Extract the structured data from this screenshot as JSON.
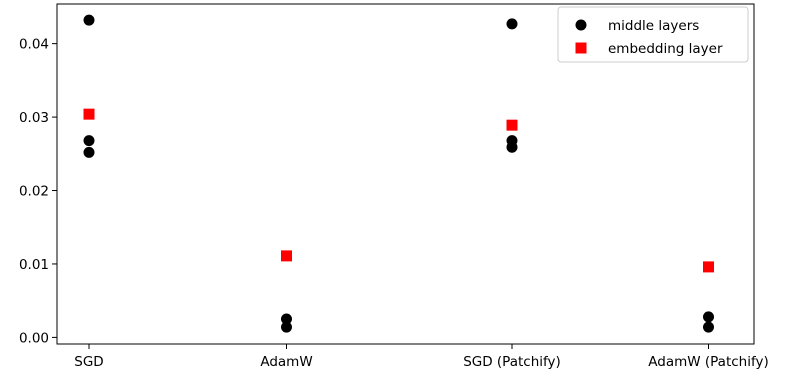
{
  "chart_data": {
    "type": "scatter",
    "categories": [
      "SGD",
      "AdamW",
      "SGD (Patchify)",
      "AdamW (Patchify)"
    ],
    "ylim": [
      -0.0009,
      0.0454
    ],
    "yticks": [
      0.0,
      0.01,
      0.02,
      0.03,
      0.04
    ],
    "ytick_labels": [
      "0.00",
      "0.01",
      "0.02",
      "0.03",
      "0.04"
    ],
    "grid": false,
    "legend_position": "top-right",
    "series": [
      {
        "name": "middle layers",
        "marker": "circle",
        "color": "#000000",
        "points": [
          {
            "category": "SGD",
            "value": 0.0432
          },
          {
            "category": "SGD",
            "value": 0.0268
          },
          {
            "category": "SGD",
            "value": 0.0252
          },
          {
            "category": "AdamW",
            "value": 0.0025
          },
          {
            "category": "AdamW",
            "value": 0.0014
          },
          {
            "category": "SGD (Patchify)",
            "value": 0.0427
          },
          {
            "category": "SGD (Patchify)",
            "value": 0.0268
          },
          {
            "category": "SGD (Patchify)",
            "value": 0.0259
          },
          {
            "category": "AdamW (Patchify)",
            "value": 0.0028
          },
          {
            "category": "AdamW (Patchify)",
            "value": 0.0014
          }
        ]
      },
      {
        "name": "embedding layer",
        "marker": "square",
        "color": "#ff0000",
        "points": [
          {
            "category": "SGD",
            "value": 0.0304
          },
          {
            "category": "AdamW",
            "value": 0.0111
          },
          {
            "category": "SGD (Patchify)",
            "value": 0.0289
          },
          {
            "category": "AdamW (Patchify)",
            "value": 0.0096
          }
        ]
      }
    ]
  }
}
